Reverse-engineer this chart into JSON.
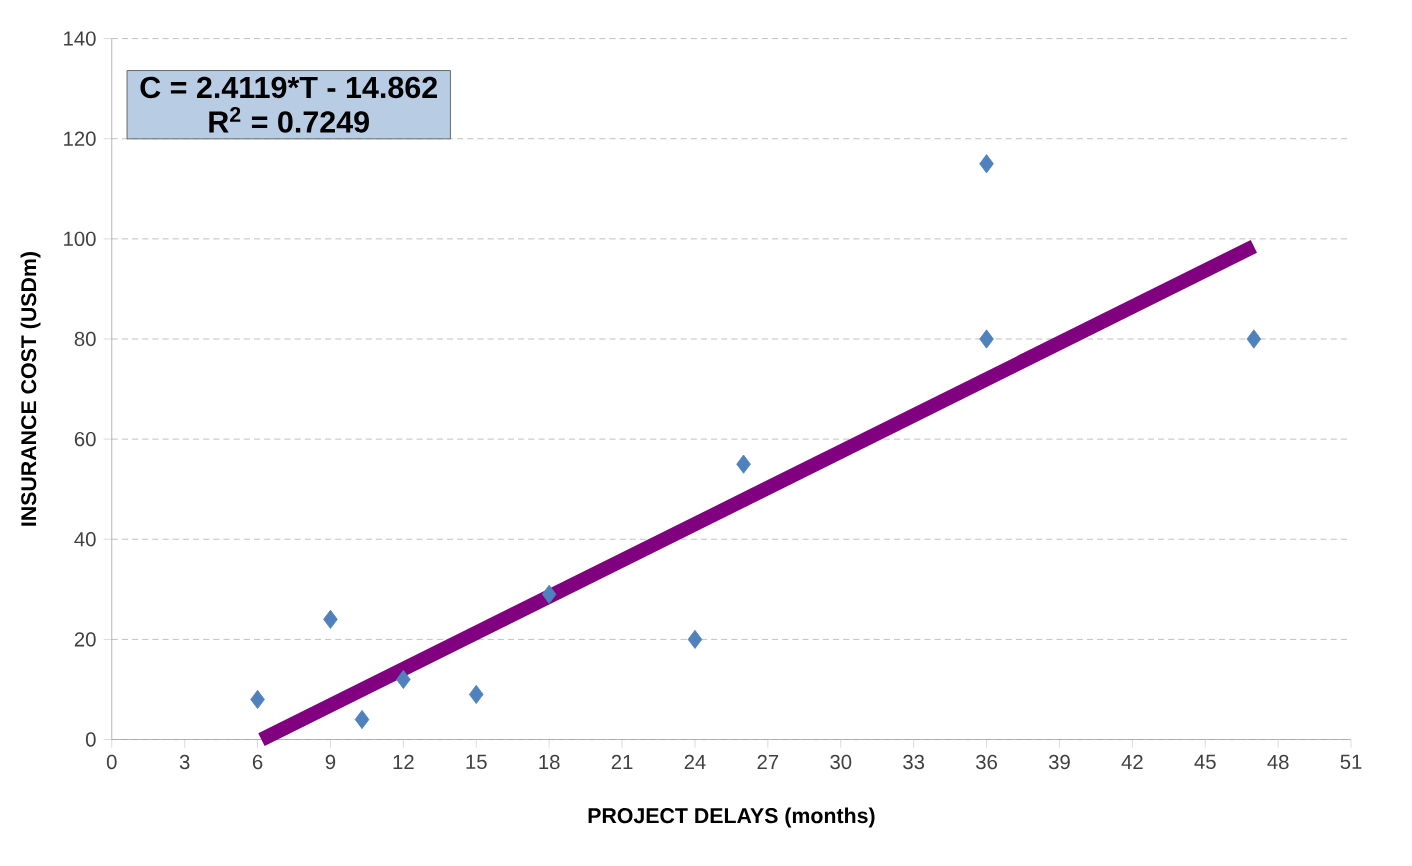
{
  "chart_data": {
    "type": "scatter",
    "xlabel": "PROJECT DELAYS (months)",
    "ylabel": "INSURANCE COST (USDm)",
    "annotations": [
      "C = 2.4119*T - 14.862",
      "R$^{2}$ = 0.7249"
    ],
    "xlim": [
      0,
      51
    ],
    "xticks": [
      0,
      3,
      6,
      9,
      12,
      15,
      18,
      21,
      24,
      27,
      30,
      33,
      36,
      39,
      42,
      45,
      48,
      51
    ],
    "ylim": [
      0,
      140
    ],
    "yticks": [
      0,
      20,
      40,
      60,
      80,
      100,
      120,
      140
    ],
    "grid": "y",
    "marker": "diamond",
    "series": [
      {
        "type": "scatter",
        "color": "#4f81bd",
        "x": [
          6,
          9,
          10.3,
          12,
          15,
          18,
          24,
          26,
          36,
          36,
          47
        ],
        "values": [
          8,
          24,
          4,
          12,
          9,
          29,
          20,
          55,
          115,
          80,
          80
        ]
      },
      {
        "type": "line",
        "color": "#800080",
        "marker": "none",
        "x": [
          6.16,
          47
        ],
        "values": [
          0,
          98.5
        ]
      }
    ]
  }
}
